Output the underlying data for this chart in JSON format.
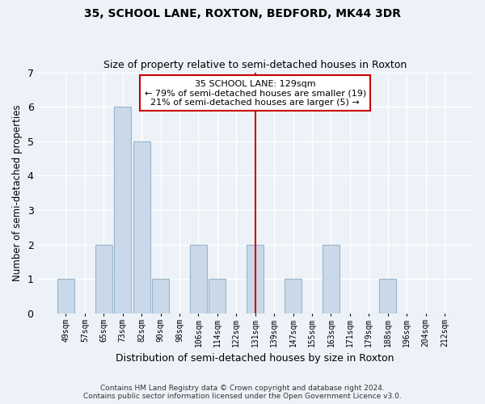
{
  "title": "35, SCHOOL LANE, ROXTON, BEDFORD, MK44 3DR",
  "subtitle": "Size of property relative to semi-detached houses in Roxton",
  "xlabel": "Distribution of semi-detached houses by size in Roxton",
  "ylabel": "Number of semi-detached properties",
  "footer_line1": "Contains HM Land Registry data © Crown copyright and database right 2024.",
  "footer_line2": "Contains public sector information licensed under the Open Government Licence v3.0.",
  "categories": [
    "49sqm",
    "57sqm",
    "65sqm",
    "73sqm",
    "82sqm",
    "90sqm",
    "98sqm",
    "106sqm",
    "114sqm",
    "122sqm",
    "131sqm",
    "139sqm",
    "147sqm",
    "155sqm",
    "163sqm",
    "171sqm",
    "179sqm",
    "188sqm",
    "196sqm",
    "204sqm",
    "212sqm"
  ],
  "values": [
    1,
    0,
    2,
    6,
    5,
    1,
    0,
    2,
    1,
    0,
    2,
    0,
    1,
    0,
    2,
    0,
    0,
    1,
    0,
    0,
    0
  ],
  "bar_color": "#c9d9e9",
  "bar_edge_color": "#9ab4ca",
  "background_color": "#edf2f8",
  "grid_color": "#ffffff",
  "property_line_index": 10,
  "property_line_color": "#cc0000",
  "annotation_text_line1": "35 SCHOOL LANE: 129sqm",
  "annotation_text_line2": "← 79% of semi-detached houses are smaller (19)",
  "annotation_text_line3": "21% of semi-detached houses are larger (5) →",
  "annotation_box_color": "#cc0000",
  "ylim": [
    0,
    7
  ],
  "yticks": [
    0,
    1,
    2,
    3,
    4,
    5,
    6,
    7
  ]
}
